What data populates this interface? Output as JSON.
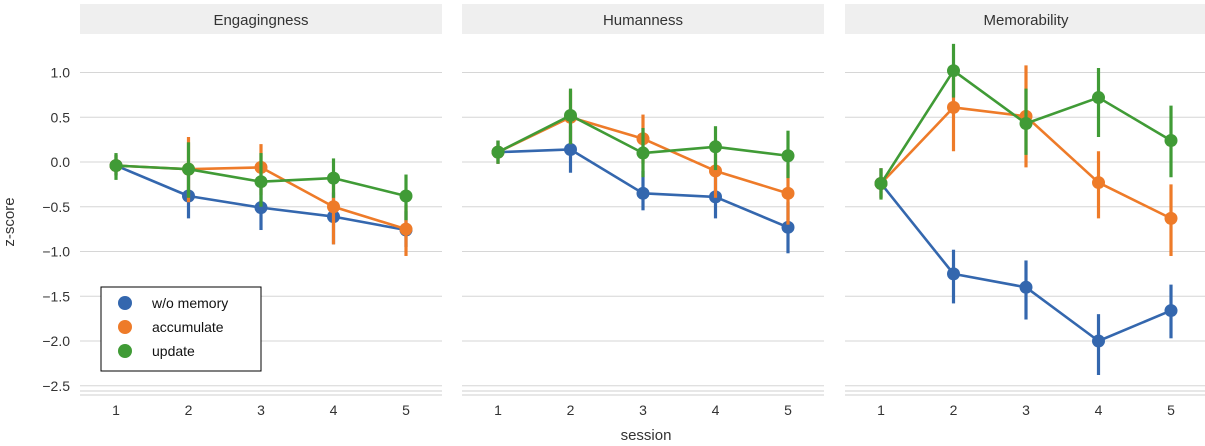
{
  "chart_data": {
    "type": "line",
    "xlabel": "session",
    "ylabel": "z-score",
    "x": [
      1,
      2,
      3,
      4,
      5
    ],
    "ylim": [
      -2.55,
      1.35
    ],
    "yticks": [
      1.0,
      0.5,
      0.0,
      -0.5,
      -1.0,
      -1.5,
      -2.0,
      -2.5
    ],
    "ytick_labels": [
      "1.0",
      "0.5",
      "0.0",
      "−0.5",
      "−1.0",
      "−1.5",
      "−2.0",
      "−2.5"
    ],
    "grid": true,
    "legend": {
      "placement": "lower-left of first panel",
      "entries": [
        "w/o memory",
        "accumulate",
        "update"
      ]
    },
    "colors": {
      "w/o memory": "#3467ae",
      "accumulate": "#ee7b29",
      "update": "#409b36"
    },
    "panels": [
      {
        "title": "Engagingness",
        "series": [
          {
            "name": "w/o memory",
            "values": [
              -0.04,
              -0.38,
              -0.51,
              -0.61,
              -0.76
            ],
            "ci_low": [
              -0.15,
              -0.63,
              -0.76,
              -0.92,
              -0.95
            ],
            "ci_high": [
              0.08,
              -0.15,
              -0.27,
              -0.34,
              -0.55
            ]
          },
          {
            "name": "accumulate",
            "values": [
              -0.04,
              -0.08,
              -0.06,
              -0.5,
              -0.75
            ],
            "ci_low": [
              -0.15,
              -0.45,
              -0.37,
              -0.92,
              -1.05
            ],
            "ci_high": [
              0.08,
              0.28,
              0.2,
              -0.15,
              -0.48
            ]
          },
          {
            "name": "update",
            "values": [
              -0.04,
              -0.08,
              -0.22,
              -0.18,
              -0.38
            ],
            "ci_low": [
              -0.2,
              -0.4,
              -0.5,
              -0.4,
              -0.65
            ],
            "ci_high": [
              0.1,
              0.22,
              0.1,
              0.04,
              -0.14
            ]
          }
        ]
      },
      {
        "title": "Humanness",
        "series": [
          {
            "name": "w/o memory",
            "values": [
              0.11,
              0.14,
              -0.35,
              -0.39,
              -0.73
            ],
            "ci_low": [
              -0.02,
              -0.12,
              -0.54,
              -0.63,
              -1.02
            ],
            "ci_high": [
              0.24,
              0.4,
              -0.1,
              -0.15,
              -0.45
            ]
          },
          {
            "name": "accumulate",
            "values": [
              0.11,
              0.5,
              0.26,
              -0.1,
              -0.35
            ],
            "ci_low": [
              -0.02,
              0.2,
              -0.02,
              -0.4,
              -0.7
            ],
            "ci_high": [
              0.24,
              0.8,
              0.53,
              0.22,
              -0.03
            ]
          },
          {
            "name": "update",
            "values": [
              0.11,
              0.52,
              0.1,
              0.17,
              0.07
            ],
            "ci_low": [
              -0.02,
              0.2,
              -0.17,
              -0.09,
              -0.18
            ],
            "ci_high": [
              0.24,
              0.82,
              0.38,
              0.4,
              0.35
            ]
          }
        ]
      },
      {
        "title": "Memorability",
        "series": [
          {
            "name": "w/o memory",
            "values": [
              -0.24,
              -1.25,
              -1.4,
              -2.0,
              -1.66
            ],
            "ci_low": [
              -0.4,
              -1.58,
              -1.76,
              -2.38,
              -1.97
            ],
            "ci_high": [
              -0.07,
              -0.98,
              -1.1,
              -1.7,
              -1.37
            ]
          },
          {
            "name": "accumulate",
            "values": [
              -0.24,
              0.61,
              0.51,
              -0.23,
              -0.63
            ],
            "ci_low": [
              -0.4,
              0.12,
              -0.06,
              -0.63,
              -1.05
            ],
            "ci_high": [
              -0.07,
              1.0,
              1.08,
              0.12,
              -0.25
            ]
          },
          {
            "name": "update",
            "values": [
              -0.24,
              1.02,
              0.43,
              0.72,
              0.24
            ],
            "ci_low": [
              -0.42,
              0.72,
              0.08,
              0.28,
              -0.17
            ],
            "ci_high": [
              -0.07,
              1.32,
              0.82,
              1.05,
              0.63
            ]
          }
        ]
      }
    ]
  }
}
